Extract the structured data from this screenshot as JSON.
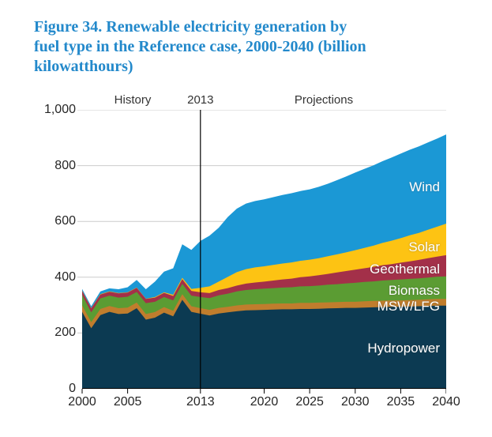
{
  "figure": {
    "title_lines": [
      "Figure 34. Renewable electricity generation by",
      "fuel type in the Reference case, 2000-2040 (billion",
      "kilowatthours)"
    ],
    "title_color": "#2389cb"
  },
  "chart_data": {
    "type": "area",
    "stacked": true,
    "title": "Renewable electricity generation by fuel type in the Reference case, 2000-2040",
    "unit": "billion kilowatthours",
    "grid": "horizontal",
    "legend_position": "labels-inside-areas",
    "x": [
      2000,
      2001,
      2002,
      2003,
      2004,
      2005,
      2006,
      2007,
      2008,
      2009,
      2010,
      2011,
      2012,
      2013,
      2014,
      2015,
      2016,
      2017,
      2018,
      2019,
      2020,
      2021,
      2022,
      2023,
      2024,
      2025,
      2026,
      2027,
      2028,
      2029,
      2030,
      2031,
      2032,
      2033,
      2034,
      2035,
      2036,
      2037,
      2038,
      2039,
      2040
    ],
    "series": [
      {
        "name": "Hydropower",
        "color": "#0c3a52",
        "values": [
          276,
          217,
          264,
          276,
          268,
          270,
          289,
          248,
          255,
          273,
          260,
          319,
          276,
          269,
          263,
          270,
          274,
          278,
          281,
          282,
          283,
          284,
          285,
          285,
          286,
          286,
          287,
          288,
          289,
          290,
          290,
          291,
          292,
          293,
          294,
          294,
          295,
          296,
          297,
          298,
          298
        ]
      },
      {
        "name": "MSW/LFG",
        "color": "#c07d2d",
        "values": [
          23,
          22,
          22,
          21,
          21,
          21,
          20,
          20,
          20,
          20,
          20,
          20,
          20,
          20,
          20,
          20,
          20,
          21,
          21,
          21,
          21,
          21,
          21,
          21,
          22,
          22,
          22,
          22,
          22,
          22,
          22,
          23,
          23,
          23,
          23,
          23,
          23,
          23,
          24,
          24,
          24
        ]
      },
      {
        "name": "Biomass",
        "color": "#5b9c33",
        "values": [
          38,
          35,
          38,
          37,
          38,
          39,
          38,
          39,
          37,
          36,
          37,
          37,
          38,
          40,
          42,
          45,
          47,
          50,
          52,
          54,
          55,
          56,
          57,
          58,
          59,
          60,
          61,
          63,
          64,
          66,
          68,
          69,
          70,
          72,
          73,
          75,
          76,
          77,
          78,
          80,
          81
        ]
      },
      {
        "name": "Geothermal",
        "color": "#a33049",
        "values": [
          14,
          14,
          14,
          14,
          15,
          15,
          15,
          15,
          15,
          15,
          16,
          17,
          17,
          17,
          18,
          19,
          20,
          21,
          23,
          24,
          25,
          27,
          29,
          31,
          33,
          35,
          37,
          39,
          42,
          44,
          47,
          49,
          52,
          55,
          57,
          60,
          63,
          66,
          69,
          72,
          76
        ]
      },
      {
        "name": "Solar",
        "color": "#fdc313",
        "values": [
          1,
          1,
          1,
          1,
          1,
          1,
          1,
          1,
          2,
          2,
          4,
          5,
          7,
          16,
          24,
          30,
          40,
          48,
          52,
          54,
          55,
          56,
          57,
          58,
          59,
          60,
          61,
          63,
          65,
          67,
          70,
          73,
          76,
          80,
          84,
          88,
          93,
          97,
          102,
          107,
          113
        ]
      },
      {
        "name": "Wind",
        "color": "#1b98d5",
        "values": [
          6,
          7,
          10,
          11,
          14,
          18,
          27,
          34,
          55,
          74,
          95,
          120,
          140,
          168,
          182,
          193,
          215,
          228,
          235,
          238,
          240,
          243,
          246,
          248,
          250,
          252,
          256,
          260,
          266,
          272,
          278,
          283,
          288,
          293,
          298,
          303,
          307,
          310,
          313,
          316,
          320
        ]
      }
    ],
    "annotations": {
      "history_label": "History",
      "divider_label": "2013",
      "projections_label": "Projections",
      "divider_year": 2013
    },
    "y_axis": {
      "min": 0,
      "max": 1000,
      "ticks": [
        0,
        200,
        400,
        600,
        800,
        1000
      ],
      "tick_labels": [
        "0",
        "200",
        "400",
        "600",
        "800",
        "1,000"
      ]
    },
    "x_axis": {
      "range": [
        2000,
        2040
      ],
      "ticks": [
        2000,
        2005,
        2013,
        2020,
        2025,
        2030,
        2035,
        2040
      ],
      "tick_labels": [
        "2000",
        "2005",
        "2013",
        "2020",
        "2025",
        "2030",
        "2035",
        "2040"
      ]
    },
    "colors": {
      "gridline": "#cccccc",
      "divider_line": "#000000",
      "axis_text": "#262626",
      "area_label_text": "#ffffff"
    }
  }
}
